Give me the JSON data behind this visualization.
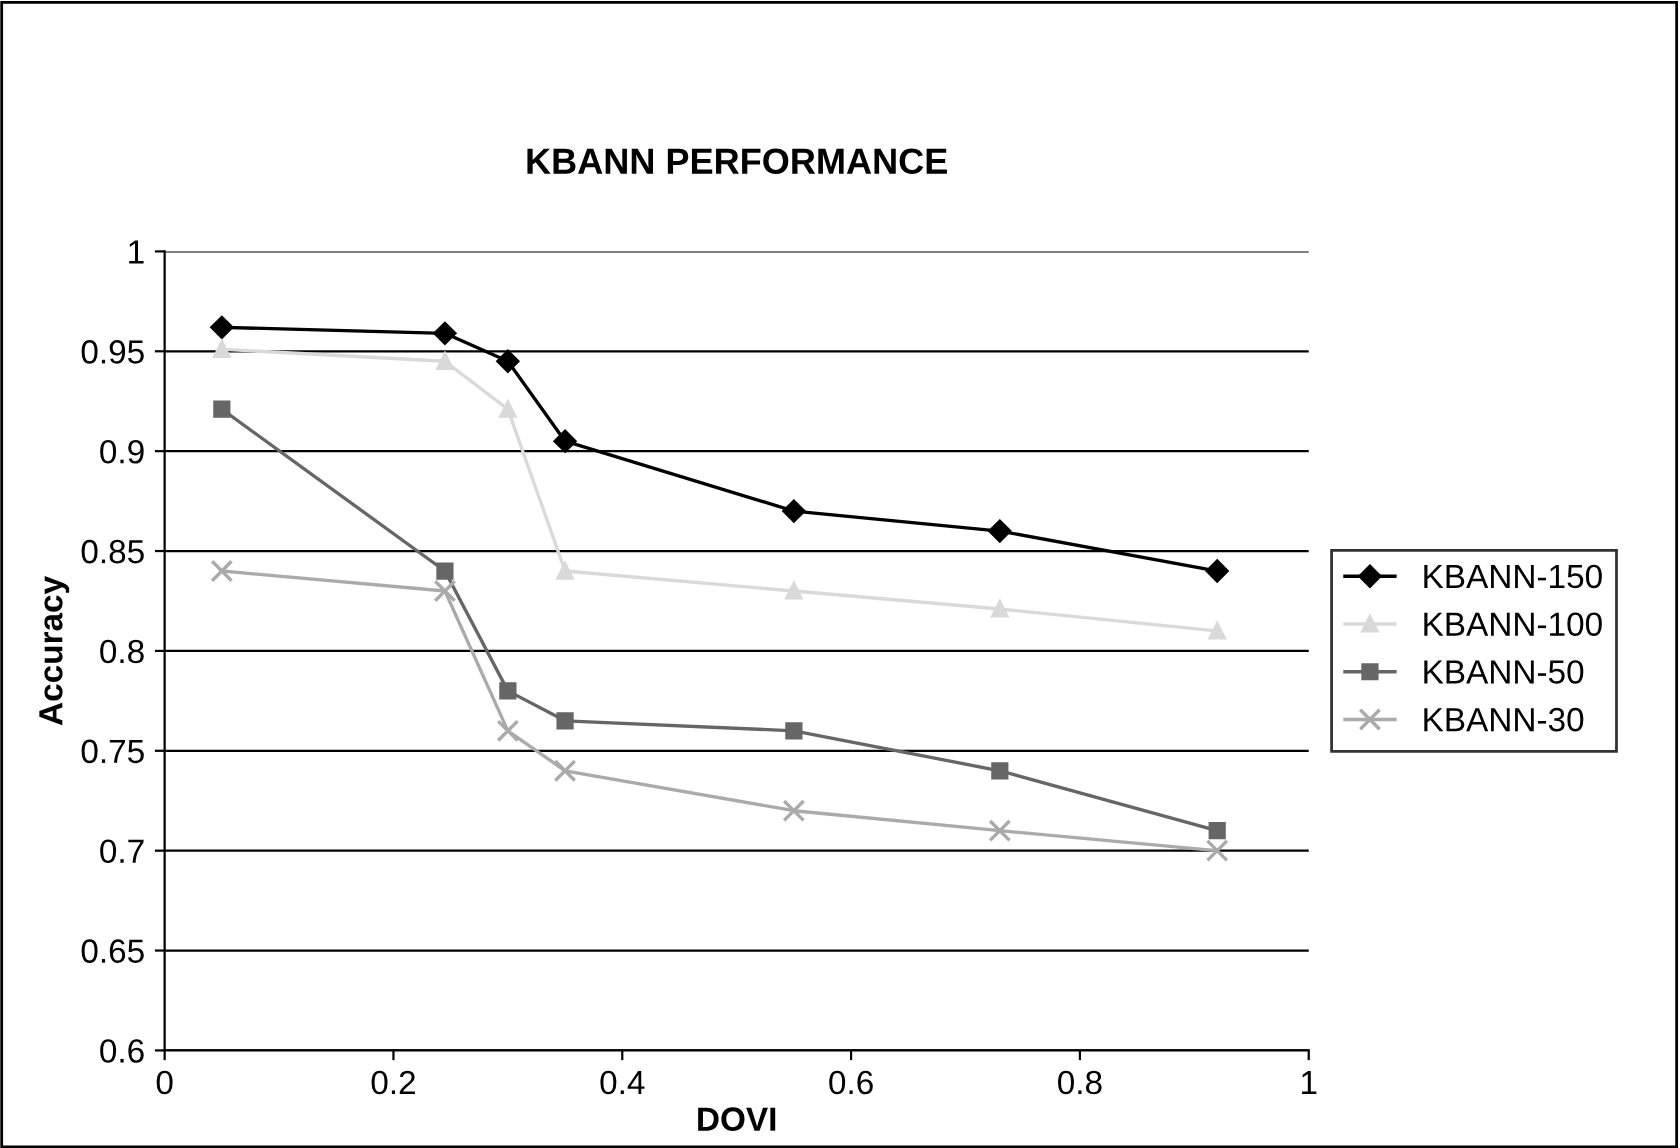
{
  "chart_data": {
    "type": "line",
    "title": "KBANN PERFORMANCE",
    "xlabel": "DOVI",
    "ylabel": "Accuracy",
    "xlim": [
      0,
      1
    ],
    "xticks": [
      0,
      0.2,
      0.4,
      0.6,
      0.8,
      1
    ],
    "ylim": [
      0.6,
      1
    ],
    "yticks": [
      0.6,
      0.65,
      0.7,
      0.75,
      0.8,
      0.85,
      0.9,
      0.95,
      1
    ],
    "grid": "y",
    "legend": "right",
    "line_style": "solid",
    "x": [
      0.05,
      0.245,
      0.3,
      0.35,
      0.55,
      0.73,
      0.92
    ],
    "series": [
      {
        "name": "KBANN-150",
        "color": "#000000",
        "marker": "diamond",
        "values": [
          0.962,
          0.959,
          0.945,
          0.905,
          0.87,
          0.86,
          0.84
        ]
      },
      {
        "name": "KBANN-100",
        "color": "#d9d9d9",
        "marker": "triangle",
        "values": [
          0.951,
          0.945,
          0.921,
          0.84,
          0.83,
          0.821,
          0.81
        ]
      },
      {
        "name": "KBANN-50",
        "color": "#666666",
        "marker": "square",
        "values": [
          0.921,
          0.84,
          0.78,
          0.765,
          0.76,
          0.74,
          0.71
        ]
      },
      {
        "name": "KBANN-30",
        "color": "#aaaaaa",
        "marker": "cross",
        "values": [
          0.84,
          0.83,
          0.76,
          0.74,
          0.72,
          0.71,
          0.7
        ]
      }
    ]
  }
}
